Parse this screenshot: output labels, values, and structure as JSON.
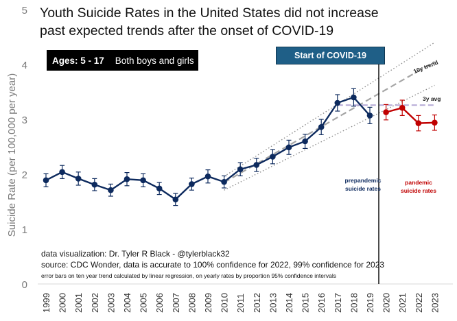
{
  "title_lines": [
    "Youth Suicide Rates in the United States did not increase",
    "past expected trends after the onset of COVID-19"
  ],
  "age_box": {
    "label": "Ages: 5 - 17",
    "group": "Both boys and girls"
  },
  "covid_banner": "Start of COVID-19",
  "trend_label": "10y trend",
  "avg_label": "3y avg",
  "prepandemic_label": [
    "prepandemic",
    "suicide rates"
  ],
  "pandemic_label": [
    "pandemic",
    "suicide rates"
  ],
  "credits": {
    "visualization": "data visualization: Dr. Tyler R Black - @tylerblack32",
    "source": "source: CDC Wonder, data is accurate to 100% confidence for 2022, 99% confidence for 2023",
    "note": "error bars on ten year trend calculated by linear regression, on yearly rates by proportion 95% confidence intervals"
  },
  "colors": {
    "prepandemic": "#0d2a5e",
    "pandemic": "#c00000",
    "trend": "#a6a6a6",
    "banner": "#1f5f87"
  },
  "chart_data": {
    "type": "line",
    "ylabel": "Suicide Rate (per 100,000 per year)",
    "ylim": [
      0,
      5
    ],
    "yticks": [
      0,
      1,
      2,
      3,
      4,
      5
    ],
    "categories": [
      "1999",
      "2000",
      "2001",
      "2002",
      "2003",
      "2004",
      "2005",
      "2006",
      "2007",
      "2008",
      "2009",
      "2010",
      "2011",
      "2012",
      "2013",
      "2014",
      "2015",
      "2016",
      "2017",
      "2018",
      "2019",
      "2020",
      "2021",
      "2022",
      "2023"
    ],
    "series": [
      {
        "name": "prepandemic",
        "x": [
          "1999",
          "2000",
          "2001",
          "2002",
          "2003",
          "2004",
          "2005",
          "2006",
          "2007",
          "2008",
          "2009",
          "2010",
          "2011",
          "2012",
          "2013",
          "2014",
          "2015",
          "2016",
          "2017",
          "2018",
          "2019"
        ],
        "values": [
          1.89,
          2.04,
          1.92,
          1.81,
          1.71,
          1.91,
          1.89,
          1.74,
          1.54,
          1.82,
          1.96,
          1.86,
          2.09,
          2.17,
          2.32,
          2.49,
          2.6,
          2.86,
          3.3,
          3.4,
          3.07
        ],
        "error": [
          0.12,
          0.12,
          0.12,
          0.11,
          0.11,
          0.12,
          0.12,
          0.11,
          0.11,
          0.11,
          0.12,
          0.11,
          0.12,
          0.12,
          0.13,
          0.13,
          0.13,
          0.14,
          0.15,
          0.16,
          0.15
        ]
      },
      {
        "name": "pandemic",
        "x": [
          "2020",
          "2021",
          "2022",
          "2023"
        ],
        "values": [
          3.13,
          3.21,
          2.93,
          2.94
        ],
        "error": [
          0.14,
          0.14,
          0.14,
          0.14
        ]
      }
    ],
    "trend": {
      "x": [
        "2010",
        "2023"
      ],
      "y": [
        1.85,
        4.05
      ],
      "upper": [
        1.96,
        4.4
      ],
      "lower": [
        1.71,
        3.62
      ]
    },
    "three_year_avg": {
      "x": [
        "2017",
        "2023"
      ],
      "value": 3.26
    },
    "covid_start": "2019"
  }
}
